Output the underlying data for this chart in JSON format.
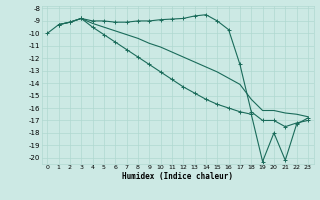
{
  "xlabel": "Humidex (Indice chaleur)",
  "bg_color": "#cce9e4",
  "grid_color": "#b0d8d0",
  "line_color": "#1a6b5a",
  "ylim": [
    -20.5,
    -7.8
  ],
  "xlim": [
    -0.5,
    23.5
  ],
  "yticks": [
    -8,
    -9,
    -10,
    -11,
    -12,
    -13,
    -14,
    -15,
    -16,
    -17,
    -18,
    -19,
    -20
  ],
  "xticks": [
    0,
    1,
    2,
    3,
    4,
    5,
    6,
    7,
    8,
    9,
    10,
    11,
    12,
    13,
    14,
    15,
    16,
    17,
    18,
    19,
    20,
    21,
    22,
    23
  ],
  "line1_x": [
    0,
    1,
    2,
    3,
    4,
    5,
    6,
    7,
    8,
    9,
    10,
    11,
    12,
    13,
    14,
    15,
    16,
    17,
    18,
    19,
    20,
    21,
    22,
    23
  ],
  "line1_y": [
    -10.0,
    -9.3,
    -9.1,
    -8.8,
    -9.0,
    -9.0,
    -9.1,
    -9.1,
    -9.0,
    -9.0,
    -8.9,
    -8.85,
    -8.8,
    -8.6,
    -8.5,
    -9.0,
    -9.7,
    -12.5,
    -16.3,
    -17.0,
    -17.0,
    -17.5,
    -17.2,
    -17.0
  ],
  "line2_x": [
    1,
    2,
    3,
    4,
    5,
    6,
    7,
    8,
    9,
    10,
    11,
    12,
    13,
    14,
    15,
    16,
    17,
    18,
    19,
    20,
    21,
    22,
    23
  ],
  "line2_y": [
    -9.3,
    -9.1,
    -8.8,
    -9.2,
    -9.5,
    -9.8,
    -10.1,
    -10.4,
    -10.8,
    -11.1,
    -11.5,
    -11.9,
    -12.3,
    -12.7,
    -13.1,
    -13.6,
    -14.1,
    -15.3,
    -16.2,
    -16.2,
    -16.4,
    -16.5,
    -16.7
  ],
  "line3_x": [
    1,
    2,
    3,
    4,
    5,
    6,
    7,
    8,
    9,
    10,
    11,
    12,
    13,
    14,
    15,
    16,
    17,
    18,
    19,
    20,
    21,
    22,
    23
  ],
  "line3_y": [
    -9.3,
    -9.1,
    -8.8,
    -9.5,
    -10.1,
    -10.7,
    -11.3,
    -11.9,
    -12.5,
    -13.1,
    -13.7,
    -14.3,
    -14.8,
    -15.3,
    -15.7,
    -16.0,
    -16.3,
    -16.5,
    -20.3,
    -18.0,
    -20.2,
    -17.3,
    -16.8
  ]
}
